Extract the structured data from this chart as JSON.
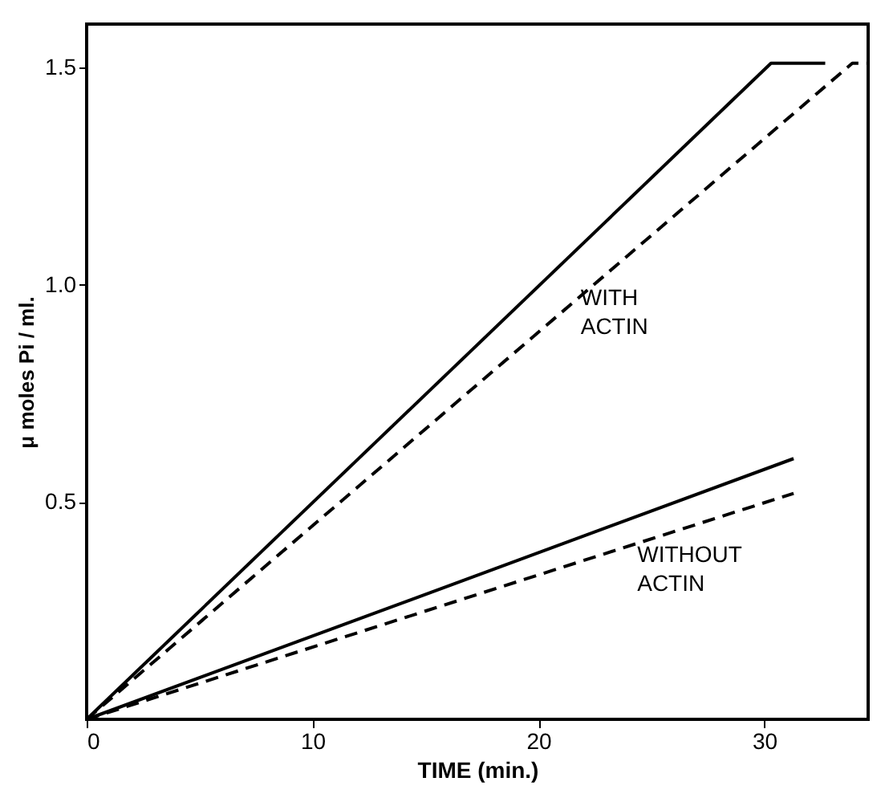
{
  "chart_data": {
    "type": "line",
    "xlabel": "TIME  (min.)",
    "ylabel": "μ moles Pi / ml.",
    "xlim": [
      0,
      34.6
    ],
    "ylim": [
      0,
      1.6
    ],
    "xticks": [
      0,
      10,
      20,
      30
    ],
    "yticks": [
      {
        "value": 0.5,
        "label": "0.5"
      },
      {
        "value": 1.0,
        "label": "1.0"
      },
      {
        "value": 1.5,
        "label": "1.5"
      }
    ],
    "grid": false,
    "marker": "none",
    "series": [
      {
        "color": "#000000",
        "line_style": "solid",
        "x": [
          0,
          30.3,
          32.7
        ],
        "values": [
          0,
          1.51,
          1.51
        ]
      },
      {
        "color": "#000000",
        "line_style": "dashed",
        "x": [
          0,
          33.9,
          34.6
        ],
        "values": [
          0,
          1.51,
          1.51
        ]
      },
      {
        "color": "#000000",
        "line_style": "solid",
        "x": [
          0,
          31.3
        ],
        "values": [
          0,
          0.6
        ]
      },
      {
        "color": "#000000",
        "line_style": "dashed",
        "x": [
          0,
          31.3
        ],
        "values": [
          0,
          0.52
        ]
      }
    ],
    "annotations": [
      "WITH\nACTIN",
      "WITHOUT\nACTIN"
    ]
  }
}
